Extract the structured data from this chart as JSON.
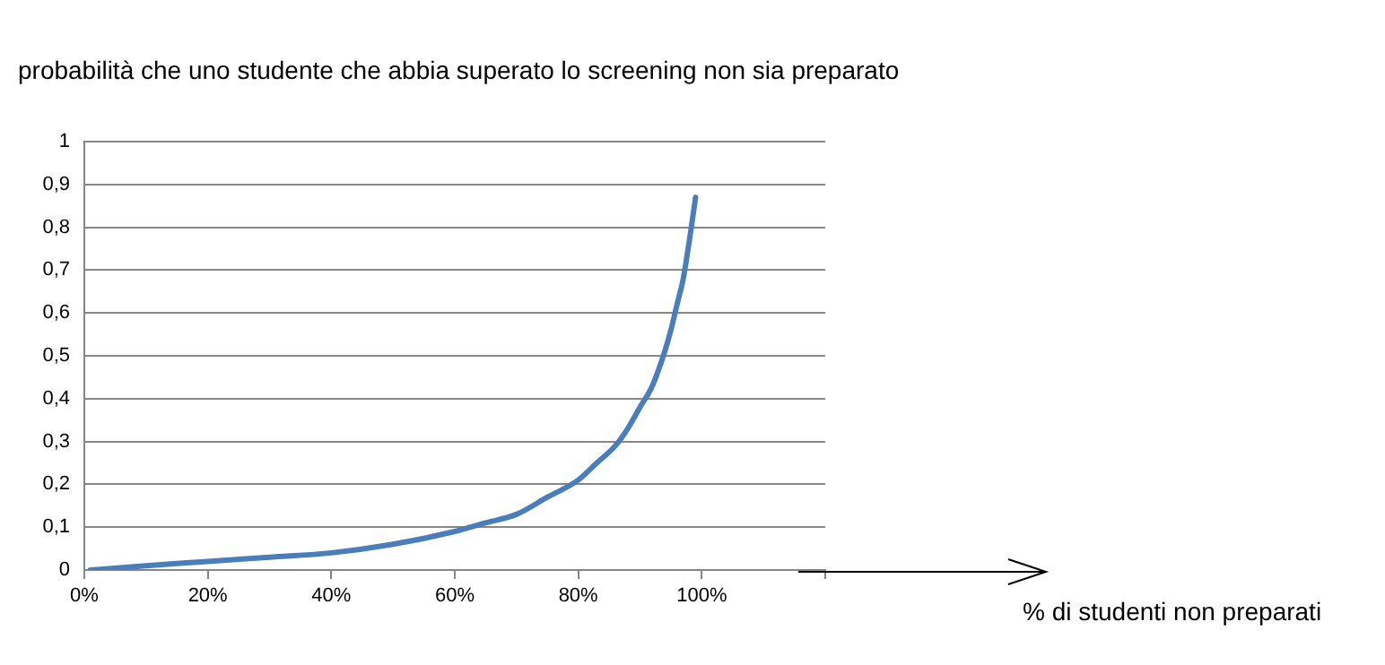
{
  "chart_data": {
    "type": "line",
    "title": "probabilità che uno studente che abbia superato lo screening non sia preparato",
    "annotations": [
      "% di studenti non preparati"
    ],
    "x": [
      1,
      10,
      20,
      30,
      40,
      50,
      60,
      65,
      70,
      75,
      80,
      83,
      86,
      88,
      90,
      92,
      94,
      95,
      96,
      97,
      98,
      99
    ],
    "series": [
      {
        "color": "#4a7ebb",
        "values": [
          0,
          0.01,
          0.02,
          0.03,
          0.04,
          0.06,
          0.09,
          0.11,
          0.13,
          0.17,
          0.21,
          0.25,
          0.29,
          0.33,
          0.38,
          0.43,
          0.51,
          0.56,
          0.62,
          0.68,
          0.77,
          0.87
        ]
      }
    ],
    "xlim": [
      0,
      120
    ],
    "xticks": [
      {
        "value": 0,
        "label": "0%"
      },
      {
        "value": 20,
        "label": "20%"
      },
      {
        "value": 40,
        "label": "40%"
      },
      {
        "value": 60,
        "label": "60%"
      },
      {
        "value": 80,
        "label": "80%"
      },
      {
        "value": 100,
        "label": "100%"
      },
      {
        "value": 120,
        "label": null
      }
    ],
    "ylim": [
      0,
      1
    ],
    "yticks": [
      {
        "value": 0,
        "label": "0"
      },
      {
        "value": 0.1,
        "label": "0,1"
      },
      {
        "value": 0.2,
        "label": "0,2"
      },
      {
        "value": 0.3,
        "label": "0,3"
      },
      {
        "value": 0.4,
        "label": "0,4"
      },
      {
        "value": 0.5,
        "label": "0,5"
      },
      {
        "value": 0.6,
        "label": "0,6"
      },
      {
        "value": 0.7,
        "label": "0,7"
      },
      {
        "value": 0.8,
        "label": "0,8"
      },
      {
        "value": 0.9,
        "label": "0,9"
      },
      {
        "value": 1,
        "label": "1"
      }
    ],
    "grid": "y",
    "legend": false,
    "marker": "none",
    "line_style": "solid"
  }
}
